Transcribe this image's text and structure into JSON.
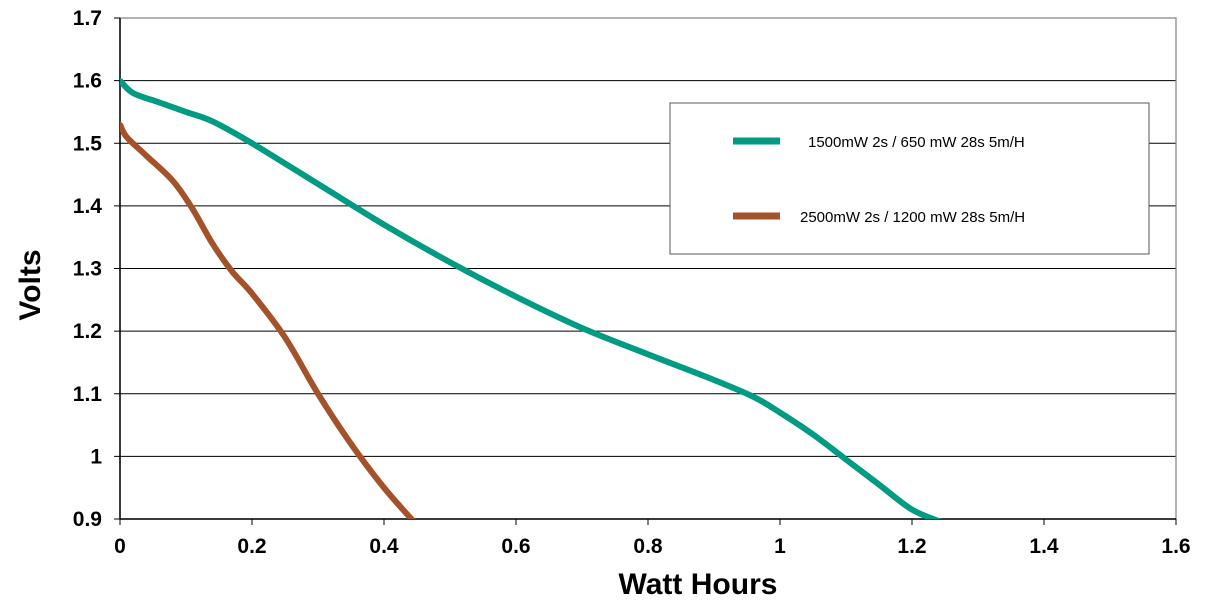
{
  "chart_data": {
    "type": "line",
    "title": "",
    "xlabel": "Watt Hours",
    "ylabel": "Volts",
    "xlim": [
      0,
      1.6
    ],
    "ylim": [
      0.9,
      1.7
    ],
    "x_ticks": [
      0,
      0.2,
      0.4,
      0.6,
      0.8,
      1,
      1.2,
      1.4,
      1.6
    ],
    "x_tick_labels": [
      "0",
      "0.2",
      "0.4",
      "0.6",
      "0.8",
      "1",
      "1.2",
      "1.4",
      "1.6"
    ],
    "y_ticks": [
      0.9,
      1,
      1.1,
      1.2,
      1.3,
      1.4,
      1.5,
      1.6,
      1.7
    ],
    "y_tick_labels": [
      "0.9",
      "1",
      "1.1",
      "1.2",
      "1.3",
      "1.4",
      "1.5",
      "1.6",
      "1.7"
    ],
    "grid": "horizontal",
    "legend_position": "top-right",
    "series": [
      {
        "name": "1500mW 2s / 650 mW 28s 5m/H",
        "color": "#009B82",
        "x": [
          0,
          0.02,
          0.06,
          0.1,
          0.14,
          0.2,
          0.3,
          0.4,
          0.5,
          0.6,
          0.7,
          0.8,
          0.9,
          0.96,
          1.0,
          1.05,
          1.1,
          1.15,
          1.2,
          1.245
        ],
        "y": [
          1.6,
          1.58,
          1.565,
          1.55,
          1.535,
          1.5,
          1.435,
          1.37,
          1.31,
          1.255,
          1.205,
          1.163,
          1.122,
          1.095,
          1.07,
          1.035,
          0.995,
          0.955,
          0.915,
          0.895
        ]
      },
      {
        "name": "2500mW 2s / 1200 mW 28s 5m/H",
        "color": "#A4522A",
        "x": [
          0,
          0.01,
          0.04,
          0.08,
          0.11,
          0.14,
          0.17,
          0.2,
          0.25,
          0.3,
          0.35,
          0.4,
          0.45,
          0.475
        ],
        "y": [
          1.53,
          1.51,
          1.48,
          1.44,
          1.395,
          1.34,
          1.295,
          1.26,
          1.19,
          1.1,
          1.02,
          0.95,
          0.89,
          0.86
        ]
      }
    ]
  }
}
